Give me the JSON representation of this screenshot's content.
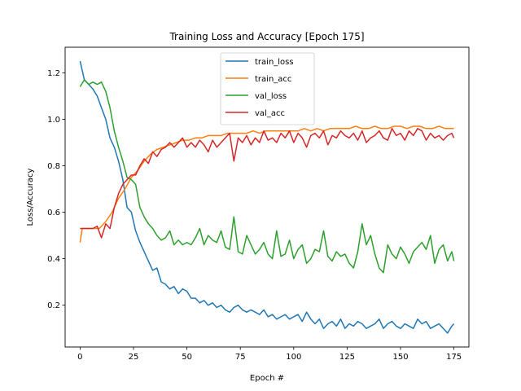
{
  "chart_data": {
    "type": "line",
    "title": "Training Loss and Accuracy [Epoch 175]",
    "xlabel": "Epoch #",
    "ylabel": "Loss/Accuracy",
    "xlim": [
      -7,
      182
    ],
    "ylim": [
      0.02,
      1.31
    ],
    "xticks": [
      0,
      25,
      50,
      75,
      100,
      125,
      150,
      175
    ],
    "yticks": [
      0.2,
      0.4,
      0.6,
      0.8,
      1.0,
      1.2
    ],
    "ytick_labels": [
      "0.2",
      "0.4",
      "0.6",
      "0.8",
      "1.0",
      "1.2"
    ],
    "grid": false,
    "legend_position": "upper-center",
    "series": [
      {
        "name": "train_loss",
        "color": "#1f77b4",
        "x": [
          0,
          2,
          4,
          6,
          8,
          10,
          12,
          14,
          16,
          18,
          20,
          22,
          24,
          26,
          28,
          30,
          32,
          34,
          36,
          38,
          40,
          42,
          44,
          46,
          48,
          50,
          52,
          54,
          56,
          58,
          60,
          62,
          64,
          66,
          68,
          70,
          72,
          74,
          76,
          78,
          80,
          82,
          84,
          86,
          88,
          90,
          92,
          94,
          96,
          98,
          100,
          102,
          104,
          106,
          108,
          110,
          112,
          114,
          116,
          118,
          120,
          122,
          124,
          126,
          128,
          130,
          132,
          134,
          136,
          138,
          140,
          142,
          144,
          146,
          148,
          150,
          152,
          154,
          156,
          158,
          160,
          162,
          164,
          166,
          168,
          170,
          172,
          174,
          175
        ],
        "y": [
          1.25,
          1.17,
          1.15,
          1.13,
          1.1,
          1.05,
          1.0,
          0.92,
          0.88,
          0.82,
          0.74,
          0.62,
          0.6,
          0.52,
          0.47,
          0.43,
          0.39,
          0.35,
          0.36,
          0.3,
          0.29,
          0.27,
          0.28,
          0.25,
          0.27,
          0.26,
          0.23,
          0.23,
          0.21,
          0.22,
          0.2,
          0.21,
          0.19,
          0.2,
          0.18,
          0.17,
          0.19,
          0.2,
          0.18,
          0.17,
          0.18,
          0.17,
          0.16,
          0.18,
          0.15,
          0.16,
          0.14,
          0.15,
          0.16,
          0.14,
          0.15,
          0.16,
          0.13,
          0.17,
          0.14,
          0.12,
          0.14,
          0.1,
          0.12,
          0.13,
          0.11,
          0.14,
          0.1,
          0.12,
          0.11,
          0.13,
          0.12,
          0.1,
          0.11,
          0.12,
          0.14,
          0.1,
          0.12,
          0.13,
          0.11,
          0.1,
          0.12,
          0.11,
          0.1,
          0.14,
          0.12,
          0.13,
          0.1,
          0.11,
          0.12,
          0.1,
          0.08,
          0.11,
          0.12
        ]
      },
      {
        "name": "train_acc",
        "color": "#ff7f0e",
        "x": [
          0,
          1,
          3,
          6,
          9,
          12,
          15,
          18,
          21,
          24,
          27,
          30,
          33,
          36,
          39,
          42,
          45,
          48,
          51,
          54,
          57,
          60,
          63,
          66,
          69,
          72,
          75,
          78,
          81,
          84,
          87,
          90,
          93,
          96,
          99,
          102,
          105,
          108,
          111,
          114,
          117,
          120,
          123,
          126,
          129,
          132,
          135,
          138,
          141,
          144,
          147,
          150,
          153,
          156,
          159,
          162,
          165,
          168,
          171,
          175
        ],
        "y": [
          0.47,
          0.53,
          0.53,
          0.53,
          0.53,
          0.56,
          0.6,
          0.66,
          0.7,
          0.75,
          0.78,
          0.82,
          0.85,
          0.87,
          0.88,
          0.89,
          0.9,
          0.91,
          0.91,
          0.92,
          0.92,
          0.93,
          0.93,
          0.93,
          0.94,
          0.94,
          0.94,
          0.94,
          0.95,
          0.94,
          0.95,
          0.95,
          0.95,
          0.95,
          0.95,
          0.95,
          0.96,
          0.95,
          0.96,
          0.95,
          0.96,
          0.96,
          0.96,
          0.96,
          0.97,
          0.96,
          0.96,
          0.97,
          0.96,
          0.96,
          0.97,
          0.97,
          0.96,
          0.97,
          0.97,
          0.96,
          0.96,
          0.97,
          0.96,
          0.96
        ]
      },
      {
        "name": "val_loss",
        "color": "#2ca02c",
        "x": [
          0,
          2,
          4,
          6,
          8,
          10,
          12,
          14,
          16,
          18,
          20,
          22,
          24,
          26,
          28,
          30,
          32,
          34,
          36,
          38,
          40,
          42,
          44,
          46,
          48,
          50,
          52,
          54,
          56,
          58,
          60,
          62,
          64,
          66,
          68,
          70,
          72,
          74,
          76,
          78,
          80,
          82,
          84,
          86,
          88,
          90,
          92,
          94,
          96,
          98,
          100,
          102,
          104,
          106,
          108,
          110,
          112,
          114,
          116,
          118,
          120,
          122,
          124,
          126,
          128,
          130,
          132,
          134,
          136,
          138,
          140,
          142,
          144,
          146,
          148,
          150,
          152,
          154,
          156,
          158,
          160,
          162,
          164,
          166,
          168,
          170,
          172,
          174,
          175
        ],
        "y": [
          1.14,
          1.17,
          1.15,
          1.16,
          1.15,
          1.16,
          1.12,
          1.05,
          0.95,
          0.88,
          0.82,
          0.75,
          0.74,
          0.72,
          0.62,
          0.58,
          0.55,
          0.53,
          0.5,
          0.48,
          0.49,
          0.52,
          0.46,
          0.48,
          0.46,
          0.47,
          0.46,
          0.49,
          0.53,
          0.46,
          0.5,
          0.48,
          0.47,
          0.52,
          0.45,
          0.44,
          0.58,
          0.43,
          0.42,
          0.5,
          0.46,
          0.42,
          0.44,
          0.47,
          0.42,
          0.4,
          0.52,
          0.41,
          0.42,
          0.48,
          0.4,
          0.44,
          0.46,
          0.38,
          0.4,
          0.44,
          0.43,
          0.52,
          0.41,
          0.39,
          0.43,
          0.41,
          0.42,
          0.38,
          0.36,
          0.43,
          0.55,
          0.46,
          0.5,
          0.42,
          0.36,
          0.34,
          0.46,
          0.42,
          0.4,
          0.45,
          0.42,
          0.38,
          0.43,
          0.45,
          0.47,
          0.44,
          0.5,
          0.38,
          0.44,
          0.46,
          0.39,
          0.43,
          0.39
        ]
      },
      {
        "name": "val_acc",
        "color": "#d62728",
        "x": [
          0,
          2,
          4,
          6,
          8,
          10,
          12,
          14,
          16,
          18,
          20,
          22,
          24,
          26,
          28,
          30,
          32,
          34,
          36,
          38,
          40,
          42,
          44,
          46,
          48,
          50,
          52,
          54,
          56,
          58,
          60,
          62,
          64,
          66,
          68,
          70,
          72,
          74,
          76,
          78,
          80,
          82,
          84,
          86,
          88,
          90,
          92,
          94,
          96,
          98,
          100,
          102,
          104,
          106,
          108,
          110,
          112,
          114,
          116,
          118,
          120,
          122,
          124,
          126,
          128,
          130,
          132,
          134,
          136,
          138,
          140,
          142,
          144,
          146,
          148,
          150,
          152,
          154,
          156,
          158,
          160,
          162,
          164,
          166,
          168,
          170,
          172,
          174,
          175
        ],
        "y": [
          0.53,
          0.53,
          0.53,
          0.53,
          0.54,
          0.49,
          0.55,
          0.53,
          0.62,
          0.68,
          0.72,
          0.74,
          0.76,
          0.76,
          0.8,
          0.83,
          0.81,
          0.86,
          0.84,
          0.87,
          0.88,
          0.9,
          0.88,
          0.9,
          0.92,
          0.88,
          0.9,
          0.88,
          0.91,
          0.89,
          0.86,
          0.91,
          0.88,
          0.9,
          0.92,
          0.94,
          0.82,
          0.92,
          0.9,
          0.93,
          0.89,
          0.92,
          0.9,
          0.95,
          0.91,
          0.92,
          0.9,
          0.94,
          0.92,
          0.95,
          0.9,
          0.94,
          0.92,
          0.88,
          0.93,
          0.94,
          0.92,
          0.95,
          0.89,
          0.93,
          0.92,
          0.95,
          0.93,
          0.92,
          0.94,
          0.91,
          0.95,
          0.9,
          0.92,
          0.93,
          0.95,
          0.92,
          0.91,
          0.96,
          0.93,
          0.94,
          0.91,
          0.95,
          0.93,
          0.96,
          0.95,
          0.91,
          0.94,
          0.92,
          0.93,
          0.91,
          0.93,
          0.94,
          0.92
        ]
      }
    ]
  }
}
